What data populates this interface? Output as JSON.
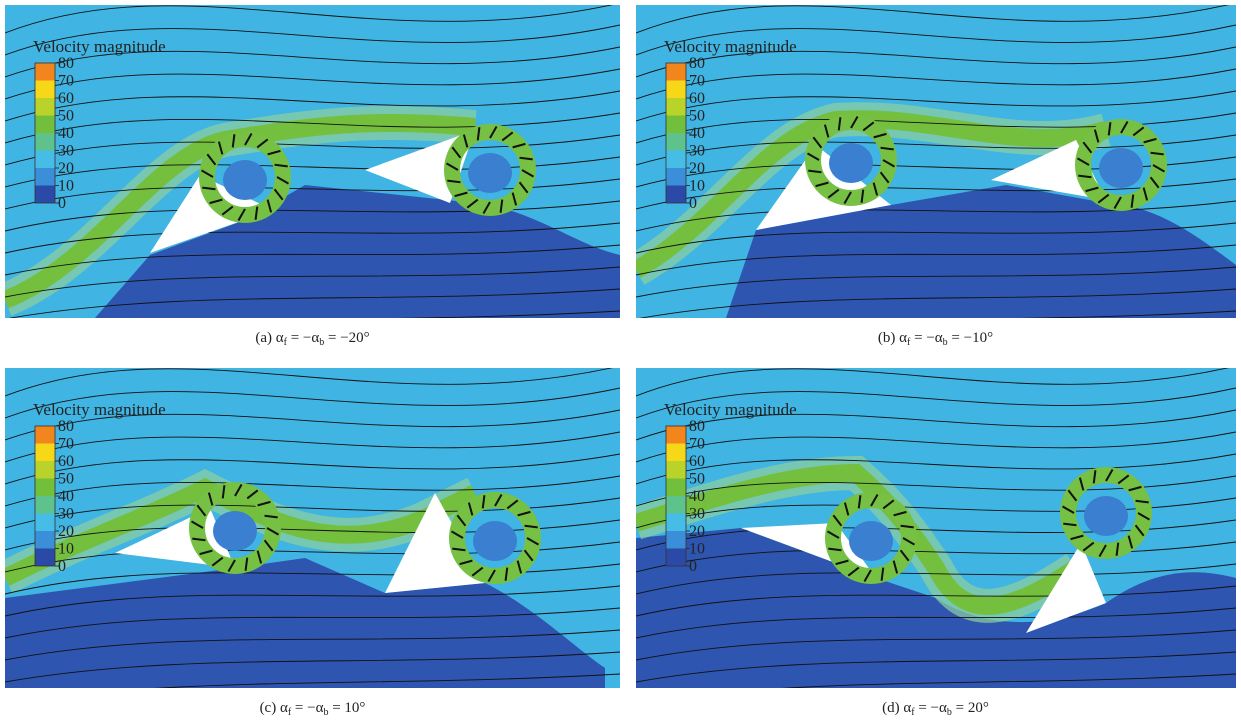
{
  "colorbar": {
    "title": "Velocity magnitude",
    "ticks": [
      0,
      10,
      20,
      30,
      40,
      50,
      60,
      70,
      80
    ],
    "colors": [
      "#2b4aa8",
      "#3a8fd8",
      "#45bde6",
      "#5ec28c",
      "#72bf3c",
      "#b9d32a",
      "#f6d818",
      "#f2861c",
      "#e6231f"
    ]
  },
  "panels": [
    {
      "caption": [
        {
          "t": "(a) α"
        },
        {
          "t": "f",
          "sub": true
        },
        {
          "t": " = −α"
        },
        {
          "t": "b",
          "sub": true
        },
        {
          "t": " = −20°"
        }
      ]
    },
    {
      "caption": [
        {
          "t": "(b) α"
        },
        {
          "t": "f",
          "sub": true
        },
        {
          "t": " = −α"
        },
        {
          "t": "b",
          "sub": true
        },
        {
          "t": " = −10°"
        }
      ]
    },
    {
      "caption": [
        {
          "t": "(c) α"
        },
        {
          "t": "f",
          "sub": true
        },
        {
          "t": " = −α"
        },
        {
          "t": "b",
          "sub": true
        },
        {
          "t": " = 10°"
        }
      ]
    },
    {
      "caption": [
        {
          "t": "(d) α"
        },
        {
          "t": "f",
          "sub": true
        },
        {
          "t": " = −α"
        },
        {
          "t": "b",
          "sub": true
        },
        {
          "t": " = 20°"
        }
      ]
    }
  ]
}
